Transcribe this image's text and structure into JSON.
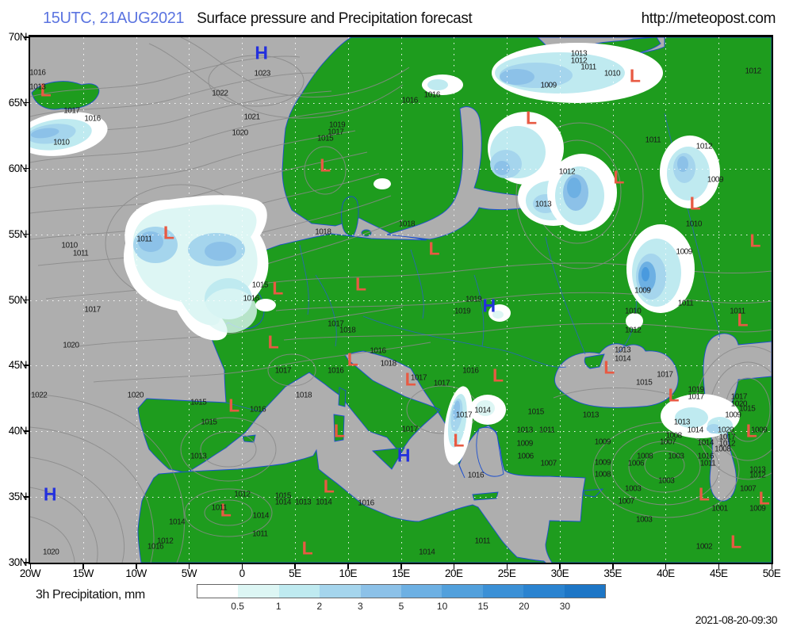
{
  "header": {
    "datetime": "15UTC, 21AUG2021",
    "title": "Surface pressure and Precipitation forecast",
    "url": "http://meteopost.com",
    "datetime_color": "#5b74e0"
  },
  "map": {
    "lat_ticks": [
      "70N",
      "65N",
      "60N",
      "55N",
      "50N",
      "45N",
      "40N",
      "35N",
      "30N"
    ],
    "lon_ticks": [
      "20W",
      "15W",
      "10W",
      "5W",
      "0",
      "5E",
      "10E",
      "15E",
      "20E",
      "25E",
      "30E",
      "35E",
      "40E",
      "45E",
      "50E"
    ],
    "colors": {
      "sea": "#aeaeae",
      "land": "#1e9c1e",
      "contour": "#8a8a8a",
      "coast": "#1c4fd0",
      "grid_dots": "#ffffff",
      "low_marker": "#e85a43",
      "high_marker": "#2330dd"
    },
    "pressure_centers": [
      [
        "L",
        2.1,
        10.3
      ],
      [
        "H",
        31.2,
        3.2
      ],
      [
        "L",
        39.8,
        24.6
      ],
      [
        "L",
        81.6,
        7.5
      ],
      [
        "L",
        67.6,
        15.5
      ],
      [
        "L",
        79.4,
        26.8
      ],
      [
        "L",
        89.7,
        31.8
      ],
      [
        "L",
        18.7,
        37.4
      ],
      [
        "L",
        33.4,
        48.0
      ],
      [
        "L",
        44.6,
        47.2
      ],
      [
        "L",
        54.5,
        40.4
      ],
      [
        "L",
        32.8,
        58.2
      ],
      [
        "L",
        43.5,
        61.5
      ],
      [
        "L",
        51.3,
        65.3
      ],
      [
        "L",
        63.1,
        64.6
      ],
      [
        "H",
        61.9,
        51.3
      ],
      [
        "L",
        41.7,
        75.1
      ],
      [
        "H",
        50.4,
        79.8
      ],
      [
        "L",
        57.8,
        76.9
      ],
      [
        "L",
        40.3,
        85.7
      ],
      [
        "L",
        37.4,
        97.5
      ],
      [
        "L",
        27.5,
        70.3
      ],
      [
        "H",
        2.7,
        87.2
      ],
      [
        "L",
        26.4,
        90.2
      ],
      [
        "L",
        78.1,
        63.0
      ],
      [
        "L",
        86.8,
        68.3
      ],
      [
        "L",
        97.8,
        38.9
      ],
      [
        "L",
        96.1,
        54.0
      ],
      [
        "L",
        97.3,
        75.1
      ],
      [
        "L",
        90.9,
        87.2
      ],
      [
        "L",
        99.0,
        87.9
      ],
      [
        "L",
        95.2,
        96.2
      ]
    ],
    "isobar_labels": [
      [
        "1016",
        1.0,
        6.8
      ],
      [
        "1013",
        1.0,
        9.5
      ],
      [
        "1017",
        5.6,
        14.0
      ],
      [
        "1016",
        8.4,
        15.5
      ],
      [
        "1010",
        4.2,
        20.1
      ],
      [
        "1023",
        31.3,
        6.9
      ],
      [
        "1022",
        25.6,
        10.7
      ],
      [
        "1021",
        29.9,
        15.2
      ],
      [
        "1020",
        28.3,
        18.3
      ],
      [
        "1016",
        51.2,
        12.1
      ],
      [
        "1016",
        54.2,
        11.0
      ],
      [
        "1019",
        41.4,
        16.7
      ],
      [
        "1017",
        41.2,
        18.1
      ],
      [
        "1015",
        39.8,
        19.3
      ],
      [
        "1018",
        50.8,
        35.6
      ],
      [
        "1013",
        74.0,
        3.2
      ],
      [
        "1012",
        74.0,
        4.5
      ],
      [
        "1011",
        75.3,
        5.7
      ],
      [
        "1010",
        78.5,
        6.9
      ],
      [
        "1009",
        69.9,
        9.2
      ],
      [
        "1012",
        97.5,
        6.5
      ],
      [
        "1011",
        84.0,
        19.6
      ],
      [
        "1012",
        90.9,
        20.8
      ],
      [
        "1009",
        92.4,
        27.1
      ],
      [
        "1012",
        72.4,
        25.6
      ],
      [
        "1013",
        69.2,
        31.8
      ],
      [
        "1010",
        89.5,
        35.6
      ],
      [
        "1009",
        88.2,
        40.9
      ],
      [
        "1009",
        82.6,
        48.3
      ],
      [
        "1011",
        88.4,
        50.7
      ],
      [
        "1010",
        81.3,
        52.2
      ],
      [
        "1011",
        95.4,
        52.2
      ],
      [
        "1012",
        81.3,
        55.8
      ],
      [
        "1013",
        79.9,
        59.6
      ],
      [
        "1014",
        79.9,
        61.2
      ],
      [
        "1015",
        82.8,
        65.8
      ],
      [
        "1017",
        85.6,
        64.3
      ],
      [
        "1019",
        89.8,
        67.1
      ],
      [
        "1017",
        89.8,
        68.5
      ],
      [
        "1017",
        95.6,
        68.5
      ],
      [
        "1020",
        95.6,
        69.8
      ],
      [
        "1011",
        15.4,
        38.5
      ],
      [
        "1010",
        5.3,
        39.7
      ],
      [
        "1011",
        6.8,
        41.2
      ],
      [
        "1017",
        8.4,
        51.9
      ],
      [
        "1020",
        5.5,
        58.7
      ],
      [
        "1022",
        1.2,
        68.2
      ],
      [
        "1020",
        14.2,
        68.2
      ],
      [
        "1015",
        22.7,
        69.5
      ],
      [
        "1015",
        31.0,
        47.2
      ],
      [
        "1016",
        29.8,
        49.8
      ],
      [
        "1018",
        39.5,
        37.1
      ],
      [
        "1017",
        41.2,
        54.6
      ],
      [
        "1018",
        42.8,
        55.8
      ],
      [
        "1016",
        46.9,
        59.7
      ],
      [
        "1018",
        48.3,
        62.1
      ],
      [
        "1019",
        59.8,
        49.9
      ],
      [
        "1019",
        58.3,
        52.2
      ],
      [
        "1017",
        34.1,
        63.5
      ],
      [
        "1016",
        41.2,
        63.5
      ],
      [
        "1017",
        52.4,
        64.8
      ],
      [
        "1017",
        55.5,
        65.9
      ],
      [
        "1016",
        59.4,
        63.5
      ],
      [
        "1018",
        36.9,
        68.2
      ],
      [
        "1016",
        30.7,
        70.9
      ],
      [
        "1014",
        61.0,
        71.0
      ],
      [
        "1017",
        51.2,
        74.7
      ],
      [
        "1017",
        58.5,
        71.9
      ],
      [
        "1016",
        45.3,
        88.7
      ],
      [
        "1015",
        34.1,
        87.3
      ],
      [
        "1014",
        34.1,
        88.5
      ],
      [
        "1013",
        36.8,
        88.5
      ],
      [
        "1014",
        39.6,
        88.5
      ],
      [
        "1011",
        61.0,
        95.9
      ],
      [
        "1014",
        53.5,
        98.0
      ],
      [
        "1015",
        24.1,
        73.3
      ],
      [
        "1013",
        22.7,
        79.8
      ],
      [
        "1012",
        28.6,
        87.0
      ],
      [
        "1011",
        25.5,
        89.6
      ],
      [
        "1014",
        31.1,
        91.1
      ],
      [
        "1011",
        31.0,
        94.6
      ],
      [
        "1014",
        19.8,
        92.3
      ],
      [
        "1012",
        18.2,
        95.9
      ],
      [
        "1016",
        16.9,
        97.0
      ],
      [
        "1020",
        2.8,
        98.0
      ],
      [
        "1016",
        60.1,
        83.4
      ],
      [
        "1013",
        66.7,
        74.8
      ],
      [
        "1009",
        66.7,
        77.4
      ],
      [
        "1006",
        66.8,
        79.8
      ],
      [
        "1015",
        68.2,
        71.3
      ],
      [
        "1013",
        75.6,
        71.9
      ],
      [
        "1011",
        69.7,
        74.8
      ],
      [
        "1007",
        69.9,
        81.1
      ],
      [
        "1009",
        77.2,
        77.1
      ],
      [
        "1009",
        77.2,
        81.0
      ],
      [
        "1008",
        77.2,
        83.3
      ],
      [
        "1008",
        82.9,
        79.8
      ],
      [
        "1006",
        81.7,
        81.1
      ],
      [
        "1007",
        86.0,
        77.1
      ],
      [
        "1003",
        87.1,
        79.8
      ],
      [
        "1003",
        85.8,
        84.5
      ],
      [
        "1003",
        81.3,
        86.0
      ],
      [
        "1007",
        80.4,
        88.4
      ],
      [
        "1003",
        82.8,
        91.9
      ],
      [
        "1002",
        90.9,
        97.0
      ],
      [
        "1001",
        93.0,
        89.7
      ],
      [
        "1013",
        87.9,
        73.3
      ],
      [
        "1014",
        89.7,
        74.8
      ],
      [
        "1008",
        86.8,
        75.9
      ],
      [
        "1014",
        91.1,
        77.2
      ],
      [
        "1016",
        91.1,
        79.8
      ],
      [
        "1011",
        91.4,
        81.1
      ],
      [
        "1020",
        93.8,
        74.8
      ],
      [
        "1017",
        94.0,
        76.2
      ],
      [
        "1012",
        94.0,
        77.4
      ],
      [
        "1008",
        93.4,
        78.4
      ],
      [
        "1009",
        94.8,
        71.9
      ],
      [
        "1015",
        96.7,
        70.8
      ],
      [
        "1009",
        98.3,
        74.8
      ],
      [
        "1013",
        98.1,
        82.3
      ],
      [
        "1012",
        98.1,
        83.4
      ],
      [
        "1007",
        96.8,
        86.0
      ],
      [
        "1009",
        98.1,
        89.7
      ]
    ]
  },
  "legend": {
    "label": "3h Precipitation, mm",
    "ticks": [
      "0.5",
      "1",
      "2",
      "3",
      "5",
      "10",
      "15",
      "20",
      "30"
    ],
    "colors": [
      "#ffffff",
      "#ddf6f4",
      "#bfeaf0",
      "#a5d5ed",
      "#8cc1e8",
      "#6db0e3",
      "#52a0dc",
      "#3b90d6",
      "#2a83d0",
      "#1d76c6"
    ]
  },
  "footer": {
    "timestamp": "2021-08-20-09:30"
  }
}
